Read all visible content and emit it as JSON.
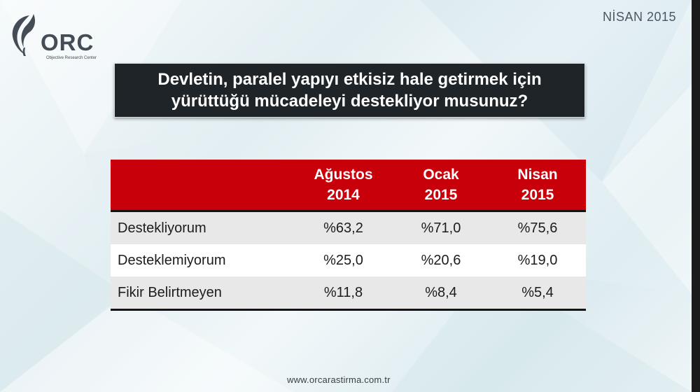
{
  "header": {
    "logo_text": "ORC",
    "logo_subtitle": "Objective Research Center",
    "date_label": "NİSAN 2015"
  },
  "question": "Devletin, paralel yapıyı etkisiz hale getirmek için\nyürüttüğü mücadeleyi destekliyor musunuz?",
  "table": {
    "columns": [
      "",
      "Ağustos\n2014",
      "Ocak\n2015",
      "Nisan\n2015"
    ],
    "rows": [
      {
        "label": "Destekliyorum",
        "values": [
          "%63,2",
          "%71,0",
          "%75,6"
        ]
      },
      {
        "label": "Desteklemiyorum",
        "values": [
          "%25,0",
          "%20,6",
          "%19,0"
        ]
      },
      {
        "label": "Fikir Belirtmeyen",
        "values": [
          "%11,8",
          "%8,4",
          "%5,4"
        ]
      }
    ]
  },
  "footer": {
    "url": "www.orcarastirma.com.tr"
  },
  "colors": {
    "header_red": "#c8000a",
    "question_bg": "#1f2428",
    "row_alt_gray": "#e8e8e8",
    "logo_gray": "#444c56"
  },
  "icons": {
    "logo_mark": "orc-leaf-logo-icon"
  }
}
